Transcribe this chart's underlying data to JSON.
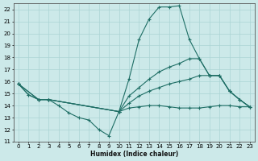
{
  "xlabel": "Humidex (Indice chaleur)",
  "xlim": [
    -0.5,
    23.5
  ],
  "ylim": [
    11,
    22.5
  ],
  "yticks": [
    11,
    12,
    13,
    14,
    15,
    16,
    17,
    18,
    19,
    20,
    21,
    22
  ],
  "xticks": [
    0,
    1,
    2,
    3,
    4,
    5,
    6,
    7,
    8,
    9,
    10,
    11,
    12,
    13,
    14,
    15,
    16,
    17,
    18,
    19,
    20,
    21,
    22,
    23
  ],
  "background_color": "#cce9e9",
  "grid_color": "#aad4d4",
  "line_color": "#1e6e65",
  "series": [
    {
      "x": [
        0,
        1,
        2,
        3,
        10,
        11,
        12,
        13,
        14,
        15,
        16,
        17,
        18,
        19,
        20,
        21,
        22,
        23
      ],
      "y": [
        15.8,
        14.9,
        14.5,
        14.5,
        13.5,
        16.2,
        19.5,
        21.2,
        22.2,
        22.2,
        22.3,
        19.5,
        17.9,
        16.5,
        16.5,
        15.2,
        14.5,
        13.9
      ]
    },
    {
      "x": [
        0,
        2,
        3,
        10,
        11,
        12,
        13,
        14,
        15,
        16,
        17,
        18,
        19,
        20,
        21,
        22,
        23
      ],
      "y": [
        15.8,
        14.5,
        14.5,
        13.5,
        14.8,
        15.5,
        16.2,
        16.8,
        17.2,
        17.5,
        17.9,
        17.9,
        16.5,
        16.5,
        15.2,
        14.5,
        13.9
      ]
    },
    {
      "x": [
        0,
        2,
        3,
        10,
        11,
        12,
        13,
        14,
        15,
        16,
        17,
        18,
        19,
        20,
        21,
        22,
        23
      ],
      "y": [
        15.8,
        14.5,
        14.5,
        13.5,
        14.2,
        14.8,
        15.2,
        15.5,
        15.8,
        16.0,
        16.2,
        16.5,
        16.5,
        16.5,
        15.2,
        14.5,
        13.9
      ]
    },
    {
      "x": [
        0,
        1,
        2,
        3,
        4,
        5,
        6,
        7,
        8,
        9,
        10,
        11,
        12,
        13,
        14,
        15,
        16,
        17,
        18,
        19,
        20,
        21,
        22,
        23
      ],
      "y": [
        15.8,
        14.9,
        14.5,
        14.5,
        14.0,
        13.4,
        13.0,
        12.8,
        12.0,
        11.5,
        13.5,
        13.8,
        13.9,
        14.0,
        14.0,
        13.9,
        13.8,
        13.8,
        13.8,
        13.9,
        14.0,
        14.0,
        13.9,
        13.9
      ]
    }
  ]
}
